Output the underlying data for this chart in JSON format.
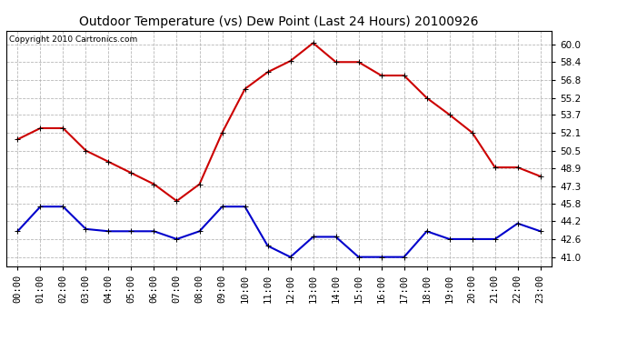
{
  "title": "Outdoor Temperature (vs) Dew Point (Last 24 Hours) 20100926",
  "copyright": "Copyright 2010 Cartronics.com",
  "hours": [
    "00:00",
    "01:00",
    "02:00",
    "03:00",
    "04:00",
    "05:00",
    "06:00",
    "07:00",
    "08:00",
    "09:00",
    "10:00",
    "11:00",
    "12:00",
    "13:00",
    "14:00",
    "15:00",
    "16:00",
    "17:00",
    "18:00",
    "19:00",
    "20:00",
    "21:00",
    "22:00",
    "23:00"
  ],
  "temp": [
    51.5,
    52.5,
    52.5,
    50.5,
    49.5,
    48.5,
    47.5,
    46.0,
    47.5,
    52.1,
    56.0,
    57.5,
    58.5,
    60.1,
    58.4,
    58.4,
    57.2,
    57.2,
    55.2,
    53.7,
    52.1,
    49.0,
    49.0,
    48.2
  ],
  "dew": [
    43.3,
    45.5,
    45.5,
    43.5,
    43.3,
    43.3,
    43.3,
    42.6,
    43.3,
    45.5,
    45.5,
    42.0,
    41.0,
    42.8,
    42.8,
    41.0,
    41.0,
    41.0,
    43.3,
    42.6,
    42.6,
    42.6,
    44.0,
    43.3
  ],
  "temp_color": "#cc0000",
  "dew_color": "#0000cc",
  "bg_color": "#ffffff",
  "grid_color": "#b0b0b0",
  "yticks": [
    41.0,
    42.6,
    44.2,
    45.8,
    47.3,
    48.9,
    50.5,
    52.1,
    53.7,
    55.2,
    56.8,
    58.4,
    60.0
  ],
  "ylim": [
    40.2,
    61.2
  ],
  "marker": "+",
  "markersize": 5,
  "linewidth": 1.5,
  "title_fontsize": 10,
  "tick_fontsize": 7.5,
  "copyright_fontsize": 6.5
}
